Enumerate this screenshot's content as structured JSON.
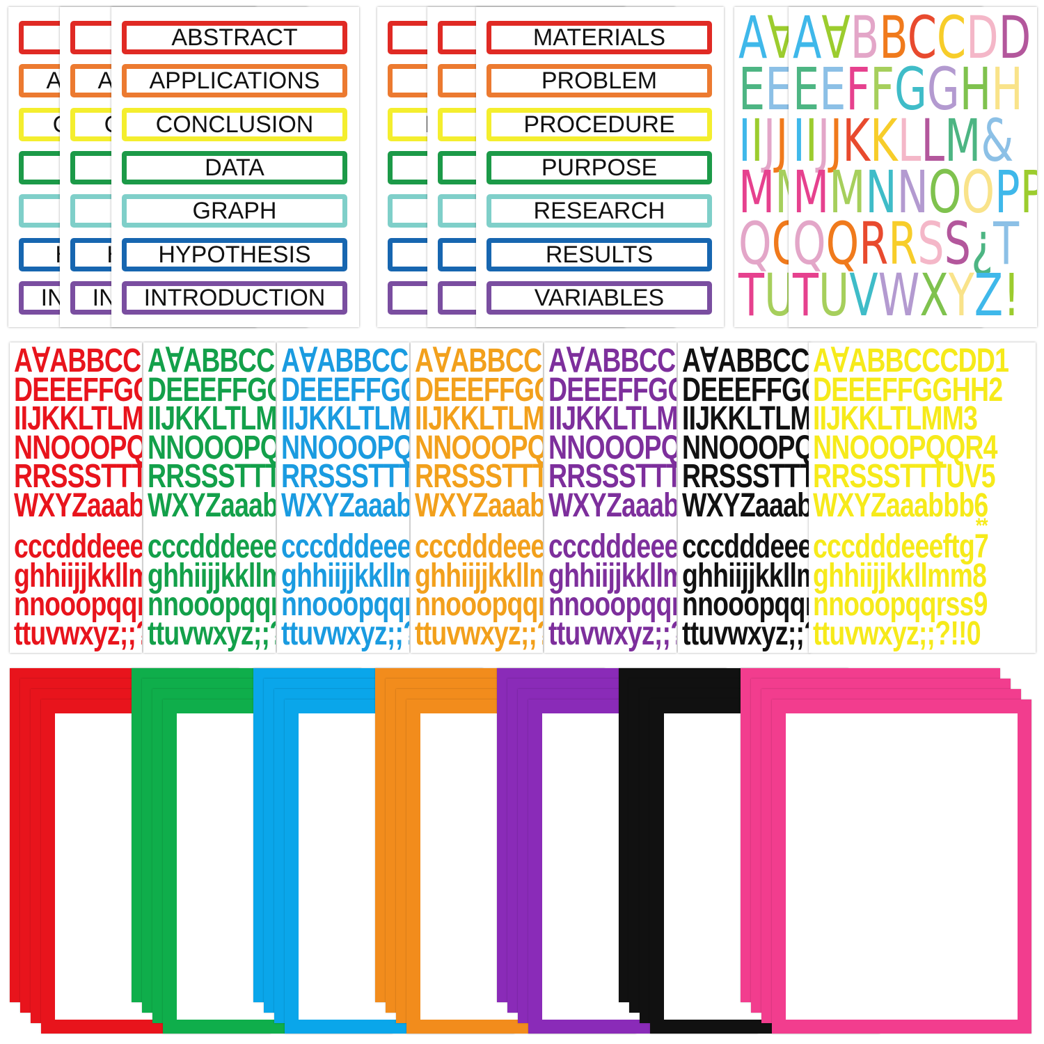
{
  "label_sheets": [
    {
      "labels": [
        "ABSTRACT",
        "APPLICATIONS",
        "CONCLUSION",
        "DATA",
        "GRAPH",
        "HYPOTHESIS",
        "INTRODUCTION"
      ]
    },
    {
      "labels": [
        "MATERIALS",
        "PROBLEM",
        "PROCEDURE",
        "PURPOSE",
        "RESEARCH",
        "RESULTS",
        "VARIABLES"
      ]
    }
  ],
  "label_colors": [
    "#e02a24",
    "#ec7a30",
    "#f4ee2e",
    "#1c9a48",
    "#7fcfc9",
    "#1766b0",
    "#7a4ea0"
  ],
  "colorful_alphabet": {
    "rows": [
      "A∀BBCCDD",
      "EEFFGGHH",
      "IIJJKKLLM&",
      "MMNNOOPP",
      "QQRRSS¿T",
      "TUVWXYZ!"
    ],
    "palette": [
      "#3fb8ea",
      "#9ccc2e",
      "#e3a6c8",
      "#f07a1c",
      "#e84a2e",
      "#f7cd2a",
      "#f4b7c8",
      "#b3579c",
      "#4db583",
      "#8cc0e6",
      "#e6418e",
      "#a6cf5c",
      "#3fbcc8",
      "#b39ad0",
      "#7fc24e",
      "#f9e38a"
    ]
  },
  "letter_sheets": {
    "rows": [
      "A∀ABBCCCDD1",
      "DEEEFFGGHH2",
      "IIJKKLTLMM3",
      "NNOOOPQQR4",
      "RRSSSTTTUV5",
      "WXYZaaabbb6",
      "**",
      "cccdddeeeftg7",
      "ghhiijjkkllmm8",
      "nnooopqqrss9",
      "ttuvwxyz;;?!!0"
    ],
    "colors": [
      "#e8141c",
      "#13a04a",
      "#1a9be0",
      "#f2a01c",
      "#7d2f9c",
      "#111111",
      "#f6ea1a"
    ]
  },
  "frame_colors": [
    "#e8141c",
    "#0fae4b",
    "#0aa6ea",
    "#f28c1c",
    "#8a2bb8",
    "#111111",
    "#f23d8e"
  ]
}
